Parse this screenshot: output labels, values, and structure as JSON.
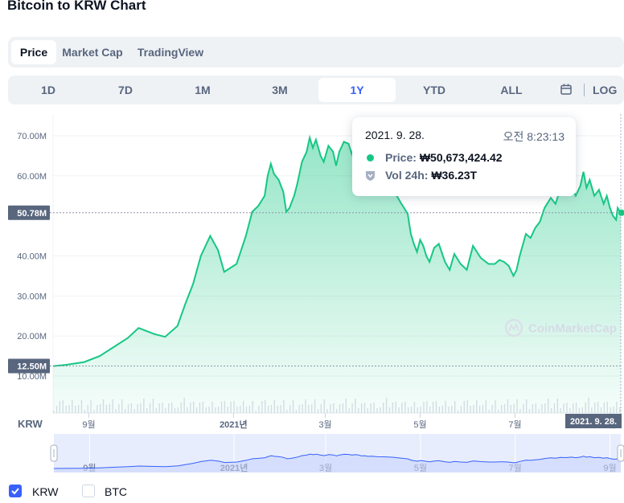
{
  "page_title": "Bitcoin to KRW Chart",
  "chart_tabs": [
    "Price",
    "Market Cap",
    "TradingView"
  ],
  "active_tab": "Price",
  "ranges": [
    "1D",
    "7D",
    "1M",
    "3M",
    "1Y",
    "YTD",
    "ALL"
  ],
  "active_range": "1Y",
  "log_label": "LOG",
  "tooltip": {
    "date": "2021. 9. 28.",
    "time": "오전 8:23:13",
    "price_label": "Price:",
    "price_value": "₩50,673,424.42",
    "vol_label": "Vol 24h:",
    "vol_value": "₩36.23T"
  },
  "watermark": "CoinMarketCap",
  "currency_label": "KRW",
  "legend": [
    {
      "label": "KRW",
      "checked": true
    },
    {
      "label": "BTC",
      "checked": false
    }
  ],
  "colors": {
    "price_line": "#16c784",
    "accent": "#3861fb",
    "nav_line": "#3861fb"
  },
  "chart_data": {
    "type": "area",
    "y_ticks": [
      "70.00M",
      "60.00M",
      "40.00M",
      "30.00M",
      "20.00M",
      "10.00M"
    ],
    "y_tick_values": [
      70,
      60,
      40,
      30,
      20,
      10
    ],
    "ylim": [
      9.2,
      73
    ],
    "x_ticks": [
      "9월",
      "2021년",
      "3월",
      "5월",
      "7월",
      "9월"
    ],
    "x_tick_days": [
      23,
      116,
      175,
      236,
      297,
      358
    ],
    "x_range_days": [
      0,
      365
    ],
    "current_label": "50.78M",
    "current_value": 50.78,
    "low_label": "12.50M",
    "low_value": 12.5,
    "hover_date_label": "2021. 9. 28.",
    "grid": true,
    "series": [
      {
        "x": [
          0,
          8,
          20,
          30,
          40,
          48,
          55,
          65,
          72,
          80,
          85,
          90,
          95,
          101,
          106,
          110,
          118,
          124,
          128,
          132,
          136,
          138,
          140,
          142,
          145,
          148,
          150,
          152,
          155,
          157,
          160,
          163,
          165,
          167,
          169,
          172,
          174,
          177,
          180,
          182,
          184,
          187,
          190,
          192,
          194,
          196,
          198,
          200,
          202,
          205,
          208,
          212,
          218,
          224,
          228,
          230,
          232,
          234,
          236,
          238,
          240,
          242,
          245,
          248,
          252,
          255,
          258,
          262,
          266,
          270,
          275,
          280,
          284,
          287,
          290,
          293,
          296,
          298,
          300,
          304,
          307,
          310,
          313,
          316,
          320,
          323,
          326,
          330,
          333,
          336,
          339,
          341,
          343,
          345,
          348,
          351,
          354,
          356,
          358,
          360,
          362,
          363,
          365
        ],
        "values": [
          12.5,
          12.8,
          13.5,
          15.0,
          17.5,
          19.5,
          22.0,
          20.5,
          19.8,
          22.5,
          28.0,
          33.0,
          40.0,
          45.0,
          41.5,
          36.0,
          38.0,
          45.0,
          51.0,
          52.5,
          55.0,
          60.0,
          63.0,
          60.5,
          59.0,
          56.0,
          51.0,
          52.0,
          55.0,
          58.0,
          63.5,
          66.0,
          69.5,
          67.0,
          69.0,
          65.0,
          63.5,
          67.5,
          66.0,
          62.5,
          66.0,
          68.5,
          68.0,
          65.5,
          67.5,
          66.0,
          62.0,
          63.0,
          60.5,
          61.0,
          59.0,
          58.5,
          57.0,
          53.0,
          50.5,
          45.5,
          43.0,
          41.0,
          44.0,
          42.5,
          40.0,
          38.5,
          42.0,
          43.0,
          38.5,
          36.5,
          40.5,
          38.0,
          36.5,
          42.5,
          39.5,
          38.0,
          38.0,
          39.0,
          38.5,
          37.5,
          35.0,
          36.5,
          40.0,
          45.5,
          44.5,
          47.0,
          48.5,
          52.0,
          54.5,
          53.0,
          56.5,
          55.5,
          57.5,
          55.0,
          57.5,
          61.0,
          57.0,
          59.0,
          55.0,
          56.5,
          53.0,
          55.0,
          52.0,
          50.0,
          49.0,
          52.0,
          50.78
        ]
      }
    ]
  }
}
